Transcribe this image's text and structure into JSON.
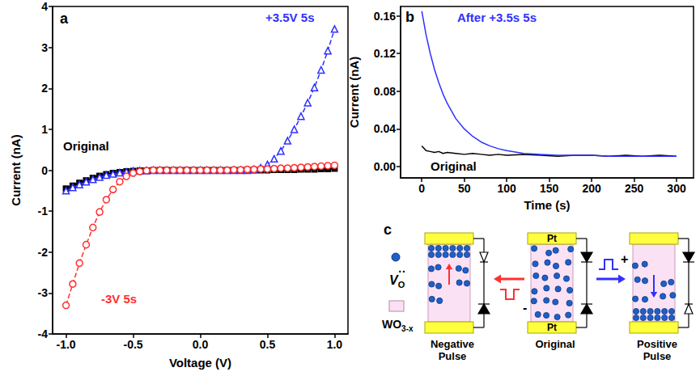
{
  "chart_data": [
    {
      "type": "line",
      "panel_label": "a",
      "xlabel": "Voltage (V)",
      "ylabel": "Current (nA)",
      "grid": false,
      "xlim": [
        -1.1,
        1.1
      ],
      "xticks": [
        {
          "value": -1,
          "label": "-1.0"
        },
        {
          "value": -0.5,
          "label": "-0.5"
        },
        {
          "value": 0,
          "label": "0.0"
        },
        {
          "value": 0.5,
          "label": "0.5"
        },
        {
          "value": 1,
          "label": "1.0"
        }
      ],
      "ylim": [
        -4,
        4
      ],
      "yticks": [
        -4,
        -3,
        -2,
        -1,
        0,
        1,
        2,
        3,
        4
      ],
      "x": [
        -1,
        -0.95,
        -0.9,
        -0.85,
        -0.8,
        -0.75,
        -0.7,
        -0.65,
        -0.6,
        -0.55,
        -0.5,
        -0.45,
        -0.4,
        -0.35,
        -0.3,
        -0.25,
        -0.2,
        -0.15,
        -0.1,
        -0.05,
        0,
        0.05,
        0.1,
        0.15,
        0.2,
        0.25,
        0.3,
        0.35,
        0.4,
        0.45,
        0.5,
        0.55,
        0.6,
        0.65,
        0.7,
        0.75,
        0.8,
        0.85,
        0.9,
        0.95,
        1
      ],
      "series": [
        {
          "name": "Original",
          "color": "#000000",
          "marker": "filled-square",
          "line_style": "solid",
          "values": [
            -0.45,
            -0.38,
            -0.31,
            -0.25,
            -0.19,
            -0.14,
            -0.1,
            -0.07,
            -0.05,
            -0.03,
            -0.02,
            -0.01,
            -0.01,
            0,
            0,
            0,
            0,
            0,
            0,
            0,
            0,
            0,
            0,
            0,
            0,
            0,
            0,
            0,
            0,
            0,
            0,
            0.01,
            0.01,
            0.01,
            0.01,
            0.02,
            0.02,
            0.02,
            0.03,
            0.03,
            0.04
          ]
        },
        {
          "name": "+3.5V 5s",
          "color": "#3030ff",
          "marker": "open-triangle",
          "line_style": "dashed",
          "values": [
            -0.5,
            -0.42,
            -0.35,
            -0.28,
            -0.22,
            -0.17,
            -0.12,
            -0.09,
            -0.06,
            -0.04,
            -0.02,
            -0.01,
            -0.01,
            0,
            0,
            0,
            0,
            0,
            0,
            0,
            0,
            0,
            0,
            0,
            0,
            0,
            0,
            0,
            0.02,
            0.06,
            0.14,
            0.28,
            0.47,
            0.72,
            1.0,
            1.32,
            1.65,
            2.02,
            2.45,
            2.92,
            3.45
          ]
        },
        {
          "name": "-3V 5s",
          "color": "#ff3030",
          "marker": "open-circle",
          "line_style": "dashed",
          "values": [
            -3.3,
            -2.78,
            -2.27,
            -1.82,
            -1.4,
            -1.02,
            -0.72,
            -0.47,
            -0.28,
            -0.15,
            -0.07,
            -0.03,
            -0.01,
            0,
            0,
            0,
            0,
            0,
            0,
            0,
            0,
            0,
            0,
            0,
            0,
            0.01,
            0.01,
            0.02,
            0.02,
            0.03,
            0.03,
            0.04,
            0.05,
            0.05,
            0.06,
            0.07,
            0.08,
            0.09,
            0.1,
            0.11,
            0.12
          ]
        }
      ]
    },
    {
      "type": "line",
      "panel_label": "b",
      "xlabel": "Time (s)",
      "ylabel": "Current (nA)",
      "grid": false,
      "xlim": [
        -25,
        320
      ],
      "xticks": [
        0,
        50,
        100,
        150,
        200,
        250,
        300
      ],
      "ylim": [
        -0.012,
        0.17
      ],
      "yticks": [
        {
          "value": 0,
          "label": "0.00"
        },
        0.04,
        0.08,
        0.12,
        0.16
      ],
      "x": [
        0,
        5,
        10,
        15,
        20,
        25,
        30,
        40,
        50,
        60,
        70,
        80,
        90,
        100,
        120,
        140,
        160,
        180,
        200,
        220,
        240,
        260,
        280,
        300
      ],
      "series": [
        {
          "name": "Original",
          "color": "#000000",
          "marker": "none",
          "line_style": "solid",
          "values": [
            0.022,
            0.017,
            0.016,
            0.015,
            0.016,
            0.014,
            0.015,
            0.014,
            0.013,
            0.014,
            0.013,
            0.012,
            0.013,
            0.012,
            0.013,
            0.012,
            0.011,
            0.012,
            0.012,
            0.011,
            0.012,
            0.011,
            0.012,
            0.011
          ]
        },
        {
          "name": "After +3.5s 5s",
          "color": "#3030ff",
          "marker": "none",
          "line_style": "solid",
          "values": [
            0.165,
            0.14,
            0.12,
            0.103,
            0.089,
            0.077,
            0.067,
            0.051,
            0.04,
            0.032,
            0.026,
            0.022,
            0.019,
            0.017,
            0.014,
            0.013,
            0.012,
            0.012,
            0.012,
            0.011,
            0.011,
            0.011,
            0.011,
            0.011
          ]
        }
      ]
    }
  ],
  "diagram": {
    "panel_label": "c",
    "legend": [
      {
        "text": "V",
        "subscript": "O",
        "superscript": "··"
      },
      {
        "text": "WO",
        "subscript": "3-x"
      }
    ],
    "states": [
      {
        "caption": "Negative Pulse",
        "pulse_sign": "-"
      },
      {
        "caption": "Original",
        "electrodes": [
          "Pt",
          "Pt"
        ]
      },
      {
        "caption": "Positive Pulse",
        "pulse_sign": "+"
      }
    ]
  }
}
